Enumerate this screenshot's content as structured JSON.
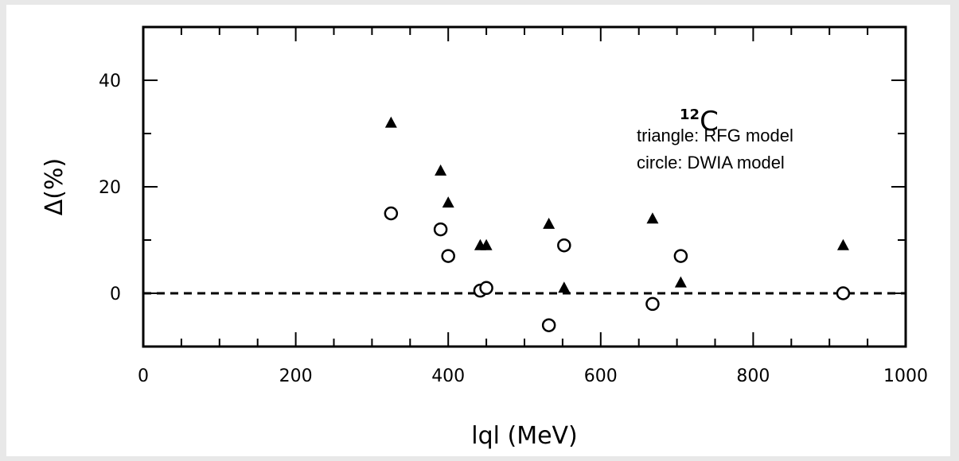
{
  "chart_data": {
    "type": "scatter",
    "title": "",
    "xlabel": "lql (MeV)",
    "ylabel": "Δ(%)",
    "xlim": [
      0,
      1000
    ],
    "ylim": [
      -10,
      50
    ],
    "xticks": [
      0,
      200,
      400,
      600,
      800,
      1000
    ],
    "yticks": [
      0,
      20,
      40
    ],
    "grid": false,
    "reference_line": {
      "y": 0,
      "style": "dashed"
    },
    "annotation": {
      "superscript": "12",
      "text": "C"
    },
    "legend": {
      "placement": "top-right",
      "entries": [
        "triangle: RFG model",
        "circle: DWIA model"
      ]
    },
    "series": [
      {
        "marker": "triangle",
        "x": [
          325,
          390,
          400,
          442,
          450,
          532,
          552,
          668,
          705,
          918
        ],
        "y": [
          32,
          23,
          17,
          9,
          9,
          13,
          1,
          14,
          2,
          9
        ]
      },
      {
        "marker": "circle",
        "x": [
          325,
          390,
          400,
          442,
          450,
          532,
          552,
          668,
          705,
          918
        ],
        "y": [
          15,
          12,
          7,
          0.5,
          1,
          -6,
          9,
          -2,
          7,
          0
        ]
      }
    ]
  }
}
